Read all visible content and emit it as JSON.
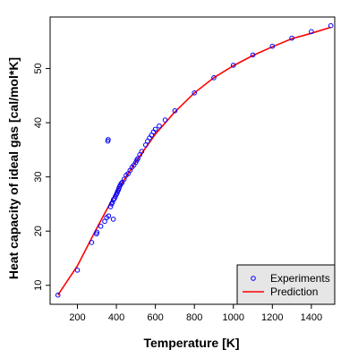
{
  "chart_data": {
    "type": "scatter",
    "title": "",
    "xlabel": "Temperature [K]",
    "ylabel": "Heat capacity of ideal gas [cal/mol*K]",
    "xlim": [
      60,
      1520
    ],
    "ylim": [
      6.5,
      59.5
    ],
    "xticks": [
      200,
      400,
      600,
      800,
      1000,
      1200,
      1400
    ],
    "yticks": [
      10,
      20,
      30,
      40,
      50
    ],
    "grid": false,
    "legend_position": "bottom-right",
    "series": [
      {
        "name": "Experiments",
        "kind": "points",
        "color": "#0000ff",
        "points": [
          [
            100,
            8.2
          ],
          [
            200,
            12.8
          ],
          [
            273,
            17.9
          ],
          [
            298,
            19.5
          ],
          [
            300,
            19.8
          ],
          [
            320,
            20.9
          ],
          [
            340,
            21.8
          ],
          [
            350,
            22.5
          ],
          [
            356,
            36.6
          ],
          [
            358,
            36.9
          ],
          [
            360,
            22.8
          ],
          [
            370,
            24.5
          ],
          [
            375,
            25.0
          ],
          [
            380,
            25.3
          ],
          [
            384,
            22.2
          ],
          [
            385,
            25.8
          ],
          [
            390,
            26.0
          ],
          [
            395,
            26.4
          ],
          [
            400,
            26.8
          ],
          [
            403,
            27.0
          ],
          [
            406,
            27.3
          ],
          [
            410,
            27.6
          ],
          [
            413,
            27.9
          ],
          [
            416,
            28.2
          ],
          [
            420,
            28.5
          ],
          [
            425,
            28.8
          ],
          [
            430,
            29.0
          ],
          [
            440,
            29.6
          ],
          [
            450,
            30.3
          ],
          [
            460,
            30.6
          ],
          [
            470,
            31.2
          ],
          [
            480,
            31.8
          ],
          [
            490,
            32.2
          ],
          [
            500,
            32.7
          ],
          [
            505,
            33.1
          ],
          [
            510,
            33.4
          ],
          [
            520,
            34.1
          ],
          [
            530,
            34.7
          ],
          [
            550,
            35.9
          ],
          [
            560,
            36.6
          ],
          [
            570,
            37.2
          ],
          [
            580,
            37.7
          ],
          [
            590,
            38.3
          ],
          [
            600,
            38.8
          ],
          [
            620,
            39.4
          ],
          [
            650,
            40.5
          ],
          [
            700,
            42.2
          ],
          [
            800,
            45.5
          ],
          [
            900,
            48.3
          ],
          [
            1000,
            50.6
          ],
          [
            1100,
            52.5
          ],
          [
            1200,
            54.1
          ],
          [
            1300,
            55.6
          ],
          [
            1400,
            56.8
          ],
          [
            1500,
            57.9
          ]
        ]
      },
      {
        "name": "Prediction",
        "kind": "line",
        "color": "#ff0000",
        "points": [
          [
            100,
            8.2
          ],
          [
            200,
            13.6
          ],
          [
            300,
            20.6
          ],
          [
            400,
            27.3
          ],
          [
            500,
            32.8
          ],
          [
            600,
            37.9
          ],
          [
            700,
            42.0
          ],
          [
            800,
            45.5
          ],
          [
            900,
            48.3
          ],
          [
            1000,
            50.5
          ],
          [
            1100,
            52.4
          ],
          [
            1200,
            54.0
          ],
          [
            1300,
            55.5
          ],
          [
            1400,
            56.5
          ],
          [
            1500,
            57.6
          ]
        ]
      }
    ]
  }
}
